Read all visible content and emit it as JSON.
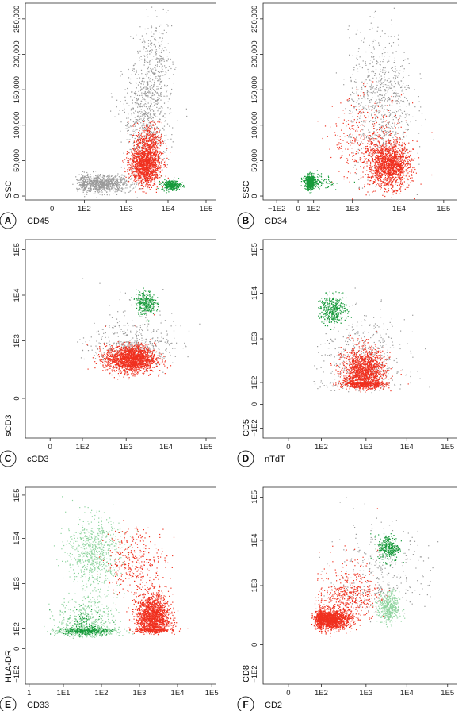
{
  "colors": {
    "gray": "#9a9a9a",
    "red": "#f0301e",
    "green": "#169a3a",
    "light_green": "#8fd49f"
  },
  "chart_data": [
    {
      "panel": "A",
      "type": "scatter",
      "xlabel": "CD45",
      "ylabel": "SSC",
      "x_scale": "log",
      "y_scale": "linear",
      "x_ticks": [
        "0",
        "1E2",
        "1E3",
        "1E4",
        "1E5"
      ],
      "y_ticks": [
        "0",
        "50,000",
        "100,000",
        "150,000",
        "200,000",
        "250,000"
      ],
      "series": [
        {
          "color": "gray",
          "clusters": [
            {
              "x": 250,
              "y": 18000,
              "n": 900,
              "sx": 0.35,
              "sy": 6000
            },
            {
              "x": 3000,
              "y": 110000,
              "n": 700,
              "sx": 0.28,
              "sy": 40000
            },
            {
              "x": 5000,
              "y": 190000,
              "n": 250,
              "sx": 0.2,
              "sy": 30000
            }
          ]
        },
        {
          "color": "red",
          "clusters": [
            {
              "x": 2800,
              "y": 45000,
              "n": 1400,
              "sx": 0.18,
              "sy": 14000
            },
            {
              "x": 3500,
              "y": 80000,
              "n": 300,
              "sx": 0.15,
              "sy": 12000
            }
          ]
        },
        {
          "color": "green",
          "clusters": [
            {
              "x": 12000,
              "y": 16000,
              "n": 300,
              "sx": 0.12,
              "sy": 3500
            }
          ]
        }
      ]
    },
    {
      "panel": "B",
      "type": "scatter",
      "xlabel": "CD34",
      "ylabel": "SSC",
      "x_scale": "log",
      "y_scale": "linear",
      "x_ticks": [
        "−1E2",
        "0",
        "1E2",
        "1E3",
        "1E4",
        "1E5"
      ],
      "y_ticks": [
        "0",
        "50,000",
        "100,000",
        "150,000",
        "200,000",
        "250,000"
      ],
      "series": [
        {
          "color": "gray",
          "clusters": [
            {
              "x": 4000,
              "y": 130000,
              "n": 800,
              "sx": 0.35,
              "sy": 50000
            }
          ]
        },
        {
          "color": "red",
          "clusters": [
            {
              "x": 6000,
              "y": 45000,
              "n": 1500,
              "sx": 0.22,
              "sy": 16000
            },
            {
              "x": 2000,
              "y": 80000,
              "n": 350,
              "sx": 0.4,
              "sy": 30000
            }
          ]
        },
        {
          "color": "green",
          "clusters": [
            {
              "x": 40,
              "y": 20000,
              "n": 600,
              "sx": 0.4,
              "sy": 5000
            }
          ]
        }
      ]
    },
    {
      "panel": "C",
      "type": "scatter",
      "xlabel": "cCD3",
      "ylabel": "sCD3",
      "x_scale": "log",
      "y_scale": "log",
      "x_ticks": [
        "0",
        "1E2",
        "1E3",
        "1E4",
        "1E5"
      ],
      "y_ticks": [
        "0",
        "1E3",
        "1E4",
        "1E5"
      ],
      "series": [
        {
          "color": "gray",
          "clusters": [
            {
              "x": 1500,
              "y": 600,
              "n": 500,
              "sx": 0.5,
              "sy": 0.5
            }
          ]
        },
        {
          "color": "red",
          "clusters": [
            {
              "x": 1300,
              "y": 120,
              "n": 1800,
              "sx": 0.3,
              "sy": 0.35
            }
          ]
        },
        {
          "color": "green",
          "clusters": [
            {
              "x": 3000,
              "y": 7000,
              "n": 300,
              "sx": 0.12,
              "sy": 0.13
            }
          ]
        }
      ]
    },
    {
      "panel": "D",
      "type": "scatter",
      "xlabel": "nTdT",
      "ylabel": "CD5",
      "x_scale": "log",
      "y_scale": "log",
      "x_ticks": [
        "0",
        "1E2",
        "1E3",
        "1E4",
        "1E5"
      ],
      "y_ticks": [
        "−1E2",
        "0",
        "1E2",
        "1E3",
        "1E4",
        "1E5"
      ],
      "series": [
        {
          "color": "gray",
          "clusters": [
            {
              "x": 900,
              "y": 300,
              "n": 500,
              "sx": 0.5,
              "sy": 0.5
            }
          ]
        },
        {
          "color": "red",
          "clusters": [
            {
              "x": 900,
              "y": 150,
              "n": 1800,
              "sx": 0.25,
              "sy": 0.3
            }
          ]
        },
        {
          "color": "green",
          "clusters": [
            {
              "x": 180,
              "y": 4500,
              "n": 400,
              "sx": 0.15,
              "sy": 0.15
            }
          ]
        }
      ]
    },
    {
      "panel": "E",
      "type": "scatter",
      "xlabel": "CD33",
      "ylabel": "HLA-DR",
      "x_scale": "log",
      "y_scale": "log",
      "x_ticks": [
        "1",
        "1E1",
        "1E2",
        "1E3",
        "1E4",
        "1E5"
      ],
      "y_ticks": [
        "−1E2",
        "0",
        "1E2",
        "1E3",
        "1E4",
        "1E5"
      ],
      "series": [
        {
          "color": "light_green",
          "clusters": [
            {
              "x": 60,
              "y": 5000,
              "n": 700,
              "sx": 0.35,
              "sy": 0.4
            },
            {
              "x": 40,
              "y": 100,
              "n": 700,
              "sx": 0.4,
              "sy": 0.35
            }
          ]
        },
        {
          "color": "green",
          "clusters": [
            {
              "x": 40,
              "y": 80,
              "n": 350,
              "sx": 0.3,
              "sy": 0.25
            }
          ]
        },
        {
          "color": "red",
          "clusters": [
            {
              "x": 2200,
              "y": 180,
              "n": 1700,
              "sx": 0.22,
              "sy": 0.25
            },
            {
              "x": 800,
              "y": 3000,
              "n": 350,
              "sx": 0.4,
              "sy": 0.4
            }
          ]
        }
      ]
    },
    {
      "panel": "F",
      "type": "scatter",
      "xlabel": "CD2",
      "ylabel": "CD8",
      "x_scale": "log",
      "y_scale": "log",
      "x_ticks": [
        "0",
        "1E2",
        "1E3",
        "1E4",
        "1E5"
      ],
      "y_ticks": [
        "−1E2",
        "0",
        "1E3",
        "1E4",
        "1E5"
      ],
      "series": [
        {
          "color": "gray",
          "clusters": [
            {
              "x": 2000,
              "y": 1500,
              "n": 300,
              "sx": 0.6,
              "sy": 0.6
            }
          ]
        },
        {
          "color": "red",
          "clusters": [
            {
              "x": 150,
              "y": 20,
              "n": 1600,
              "sx": 0.25,
              "sy": 0.25
            },
            {
              "x": 400,
              "y": 400,
              "n": 450,
              "sx": 0.35,
              "sy": 0.5
            }
          ]
        },
        {
          "color": "light_green",
          "clusters": [
            {
              "x": 3500,
              "y": 80,
              "n": 450,
              "sx": 0.13,
              "sy": 0.4
            }
          ]
        },
        {
          "color": "green",
          "clusters": [
            {
              "x": 3500,
              "y": 7000,
              "n": 300,
              "sx": 0.13,
              "sy": 0.15
            }
          ]
        }
      ]
    }
  ]
}
